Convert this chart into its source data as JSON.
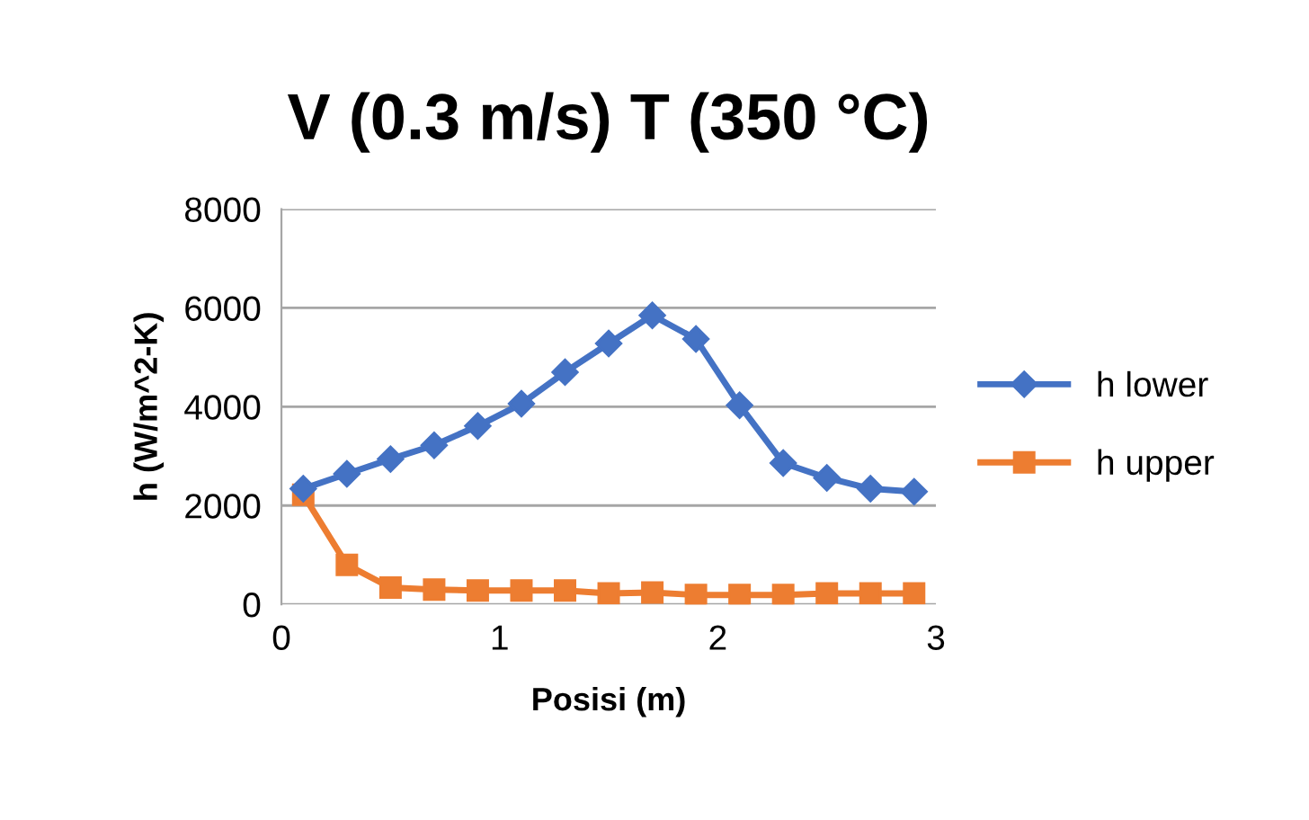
{
  "chart_data": {
    "type": "line",
    "title": "V (0.3 m/s) T (350 °C)",
    "xlabel": "Posisi (m)",
    "ylabel": "h (W/m^2-K)",
    "x": [
      0.1,
      0.3,
      0.5,
      0.7,
      0.9,
      1.1,
      1.3,
      1.5,
      1.7,
      1.9,
      2.1,
      2.3,
      2.5,
      2.7,
      2.9
    ],
    "series": [
      {
        "name": "h lower",
        "color": "#4472c4",
        "marker": "diamond",
        "values": [
          2340,
          2640,
          2940,
          3220,
          3610,
          4060,
          4700,
          5280,
          5850,
          5370,
          4030,
          2860,
          2560,
          2340,
          2280
        ]
      },
      {
        "name": "h upper",
        "color": "#ed7d31",
        "marker": "square",
        "values": [
          2220,
          800,
          340,
          300,
          280,
          280,
          280,
          220,
          240,
          190,
          190,
          190,
          220,
          220,
          220
        ]
      }
    ],
    "xlim": [
      0,
      3
    ],
    "xticks": [
      0,
      1,
      2,
      3
    ],
    "ylim": [
      0,
      8000
    ],
    "yticks": [
      0,
      2000,
      4000,
      6000,
      8000
    ],
    "grid": "y",
    "legend": "right",
    "line_style": "solid"
  }
}
